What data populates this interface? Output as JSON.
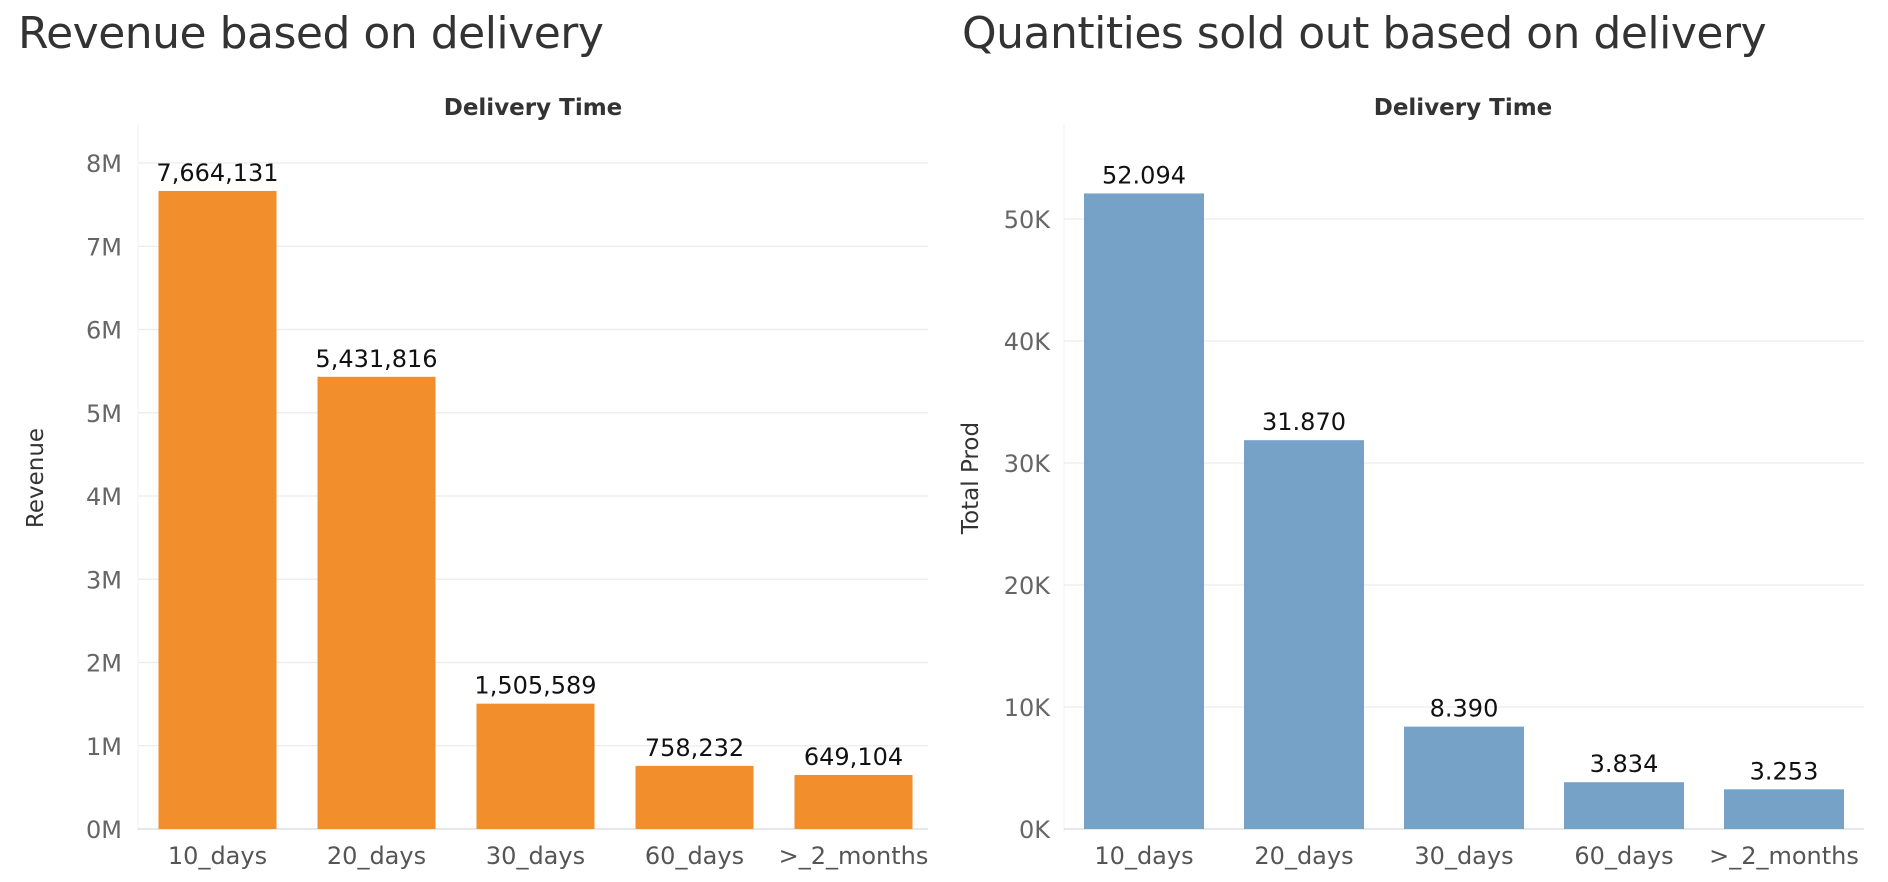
{
  "chart_data": [
    {
      "type": "bar",
      "title": "Revenue based on delivery",
      "column_header": "Delivery Time",
      "ylabel": "Revenue",
      "xlabel": "",
      "categories": [
        "10_days",
        "20_days",
        "30_days",
        "60_days",
        ">_2_months"
      ],
      "values": [
        7664131,
        5431816,
        1505589,
        758232,
        649104
      ],
      "data_labels": [
        "7,664,131",
        "5,431,816",
        "1,505,589",
        "758,232",
        "649,104"
      ],
      "ylim": [
        0,
        8000000
      ],
      "yticks": [
        0,
        1000000,
        2000000,
        3000000,
        4000000,
        5000000,
        6000000,
        7000000,
        8000000
      ],
      "ytick_labels": [
        "0M",
        "1M",
        "2M",
        "3M",
        "4M",
        "5M",
        "6M",
        "7M",
        "8M"
      ],
      "grid": true,
      "color": "#f28e2b"
    },
    {
      "type": "bar",
      "title": "Quantities sold out based on delivery",
      "column_header": "Delivery Time",
      "ylabel": "Total Prod",
      "xlabel": "",
      "categories": [
        "10_days",
        "20_days",
        "30_days",
        "60_days",
        ">_2_months"
      ],
      "values": [
        52094,
        31870,
        8390,
        3834,
        3253
      ],
      "data_labels": [
        "52.094",
        "31.870",
        "8.390",
        "3.834",
        "3.253"
      ],
      "ylim": [
        0,
        50000
      ],
      "yticks": [
        0,
        10000,
        20000,
        30000,
        40000,
        50000
      ],
      "ytick_labels": [
        "0K",
        "10K",
        "20K",
        "30K",
        "40K",
        "50K"
      ],
      "grid": true,
      "color": "#76a2c7"
    }
  ]
}
